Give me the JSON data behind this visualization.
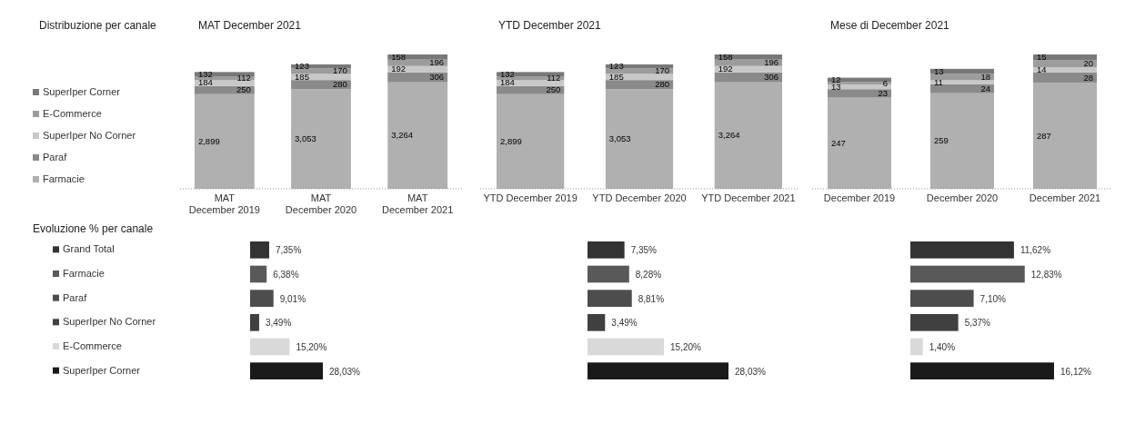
{
  "chart_data": [
    {
      "type": "bar",
      "stacked": true,
      "title": "MAT December 2021",
      "annotations": [
        "Distribuzione per canale"
      ],
      "categories": [
        "MAT December 2019",
        "MAT December 2020",
        "MAT December 2021"
      ],
      "series": [
        {
          "name": "Farmacie",
          "color": "#b0b0b0",
          "values": [
            2899,
            3053,
            3264
          ],
          "value_labels": [
            "2,899",
            "3,053",
            "3,264"
          ]
        },
        {
          "name": "Paraf",
          "color": "#8a8a8a",
          "values": [
            250,
            280,
            306
          ],
          "value_labels": [
            "250",
            "280",
            "306"
          ]
        },
        {
          "name": "SuperIper No Corner",
          "color": "#c8c8c8",
          "values": [
            184,
            185,
            192
          ],
          "value_labels": [
            "184",
            "185",
            "192"
          ]
        },
        {
          "name": "E-Commerce",
          "color": "#9c9c9c",
          "values": [
            112,
            170,
            196
          ],
          "value_labels": [
            "112",
            "170",
            "196"
          ]
        },
        {
          "name": "SuperIper Corner",
          "color": "#787878",
          "values": [
            132,
            123,
            158
          ],
          "value_labels": [
            "132",
            "123",
            "158"
          ]
        }
      ],
      "legend": "left",
      "tick_labels": "x"
    },
    {
      "type": "bar",
      "stacked": true,
      "title": "YTD December 2021",
      "categories": [
        "YTD December 2019",
        "YTD December 2020",
        "YTD December 2021"
      ],
      "series": [
        {
          "color": "#b0b0b0",
          "values": [
            2899,
            3053,
            3264
          ],
          "value_labels": [
            "2,899",
            "3,053",
            "3,264"
          ]
        },
        {
          "color": "#8a8a8a",
          "values": [
            250,
            280,
            306
          ],
          "value_labels": [
            "250",
            "280",
            "306"
          ]
        },
        {
          "color": "#c8c8c8",
          "values": [
            184,
            185,
            192
          ],
          "value_labels": [
            "184",
            "185",
            "192"
          ]
        },
        {
          "color": "#9c9c9c",
          "values": [
            112,
            170,
            196
          ],
          "value_labels": [
            "112",
            "170",
            "196"
          ]
        },
        {
          "color": "#787878",
          "values": [
            132,
            123,
            158
          ],
          "value_labels": [
            "132",
            "123",
            "158"
          ]
        }
      ],
      "legend": false,
      "tick_labels": "x"
    },
    {
      "type": "bar",
      "stacked": true,
      "title": "Mese di December 2021",
      "categories": [
        "December 2019",
        "December 2020",
        "December 2021"
      ],
      "series": [
        {
          "color": "#b0b0b0",
          "values": [
            247,
            259,
            287
          ],
          "value_labels": [
            "247",
            "259",
            "287"
          ]
        },
        {
          "color": "#8a8a8a",
          "values": [
            23,
            24,
            28
          ],
          "value_labels": [
            "23",
            "24",
            "28"
          ]
        },
        {
          "color": "#c8c8c8",
          "values": [
            13,
            11,
            14
          ],
          "value_labels": [
            "13",
            "11",
            "14"
          ]
        },
        {
          "color": "#9c9c9c",
          "values": [
            6,
            18,
            20
          ],
          "value_labels": [
            "6",
            "18",
            "20"
          ]
        },
        {
          "color": "#787878",
          "values": [
            12,
            13,
            15
          ],
          "value_labels": [
            "12",
            "13",
            "15"
          ]
        }
      ],
      "legend": false,
      "tick_labels": "x"
    },
    {
      "type": "bar",
      "orientation": "horizontal",
      "annotations": [
        "Evoluzione % per canale"
      ],
      "categories": [
        "Grand Total",
        "Farmacie",
        "Paraf",
        "SuperIper No Corner",
        "E-Commerce",
        "SuperIper Corner"
      ],
      "values": [
        7.35,
        6.38,
        9.01,
        3.49,
        15.2,
        28.03
      ],
      "value_labels": [
        "7,35%",
        "6,38%",
        "9,01%",
        "3,49%",
        "15,20%",
        "28,03%"
      ],
      "colors": [
        "#333333",
        "#595959",
        "#4d4d4d",
        "#404040",
        "#d9d9d9",
        "#1a1a1a"
      ],
      "tick_labels": "y"
    },
    {
      "type": "bar",
      "orientation": "horizontal",
      "categories": [
        null,
        null,
        null,
        null,
        null,
        null
      ],
      "values": [
        7.35,
        8.28,
        8.81,
        3.49,
        15.2,
        28.03
      ],
      "value_labels": [
        "7,35%",
        "8,28%",
        "8,81%",
        "3,49%",
        "15,20%",
        "28,03%"
      ],
      "colors": [
        "#333333",
        "#595959",
        "#4d4d4d",
        "#404040",
        "#d9d9d9",
        "#1a1a1a"
      ],
      "tick_labels": false
    },
    {
      "type": "bar",
      "orientation": "horizontal",
      "categories": [
        null,
        null,
        null,
        null,
        null,
        null
      ],
      "values": [
        11.62,
        12.83,
        7.1,
        5.37,
        1.4,
        16.12
      ],
      "value_labels": [
        "11,62%",
        "12,83%",
        "7,10%",
        "5,37%",
        "1,40%",
        "16,12%"
      ],
      "colors": [
        "#333333",
        "#595959",
        "#4d4d4d",
        "#404040",
        "#d9d9d9",
        "#1a1a1a"
      ],
      "tick_labels": false
    }
  ]
}
